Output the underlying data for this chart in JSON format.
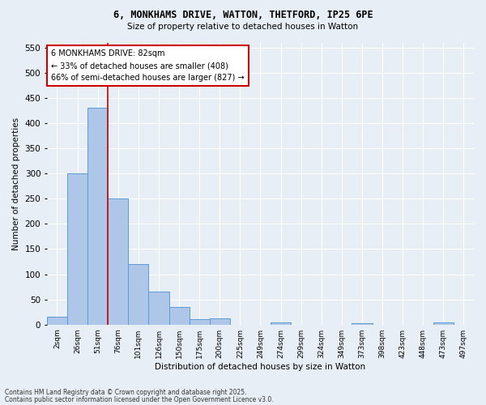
{
  "title_line1": "6, MONKHAMS DRIVE, WATTON, THETFORD, IP25 6PE",
  "title_line2": "Size of property relative to detached houses in Watton",
  "bar_labels": [
    "2sqm",
    "26sqm",
    "51sqm",
    "76sqm",
    "101sqm",
    "126sqm",
    "150sqm",
    "175sqm",
    "200sqm",
    "225sqm",
    "249sqm",
    "274sqm",
    "299sqm",
    "324sqm",
    "349sqm",
    "373sqm",
    "398sqm",
    "423sqm",
    "448sqm",
    "473sqm",
    "497sqm"
  ],
  "bar_values": [
    15,
    300,
    430,
    250,
    120,
    65,
    35,
    10,
    12,
    0,
    0,
    5,
    0,
    0,
    0,
    3,
    0,
    0,
    0,
    5,
    0
  ],
  "bar_color": "#aec6e8",
  "bar_edgecolor": "#5b9bd5",
  "vline_x": 2.5,
  "vline_color": "#cc0000",
  "annotation_text": "6 MONKHAMS DRIVE: 82sqm\n← 33% of detached houses are smaller (408)\n66% of semi-detached houses are larger (827) →",
  "annotation_box_color": "#ffffff",
  "annotation_box_edgecolor": "#cc0000",
  "ylabel": "Number of detached properties",
  "xlabel": "Distribution of detached houses by size in Watton",
  "ylim": [
    0,
    560
  ],
  "yticks": [
    0,
    50,
    100,
    150,
    200,
    250,
    300,
    350,
    400,
    450,
    500,
    550
  ],
  "background_color": "#e8eef5",
  "grid_color": "#ffffff",
  "footnote1": "Contains HM Land Registry data © Crown copyright and database right 2025.",
  "footnote2": "Contains public sector information licensed under the Open Government Licence v3.0."
}
